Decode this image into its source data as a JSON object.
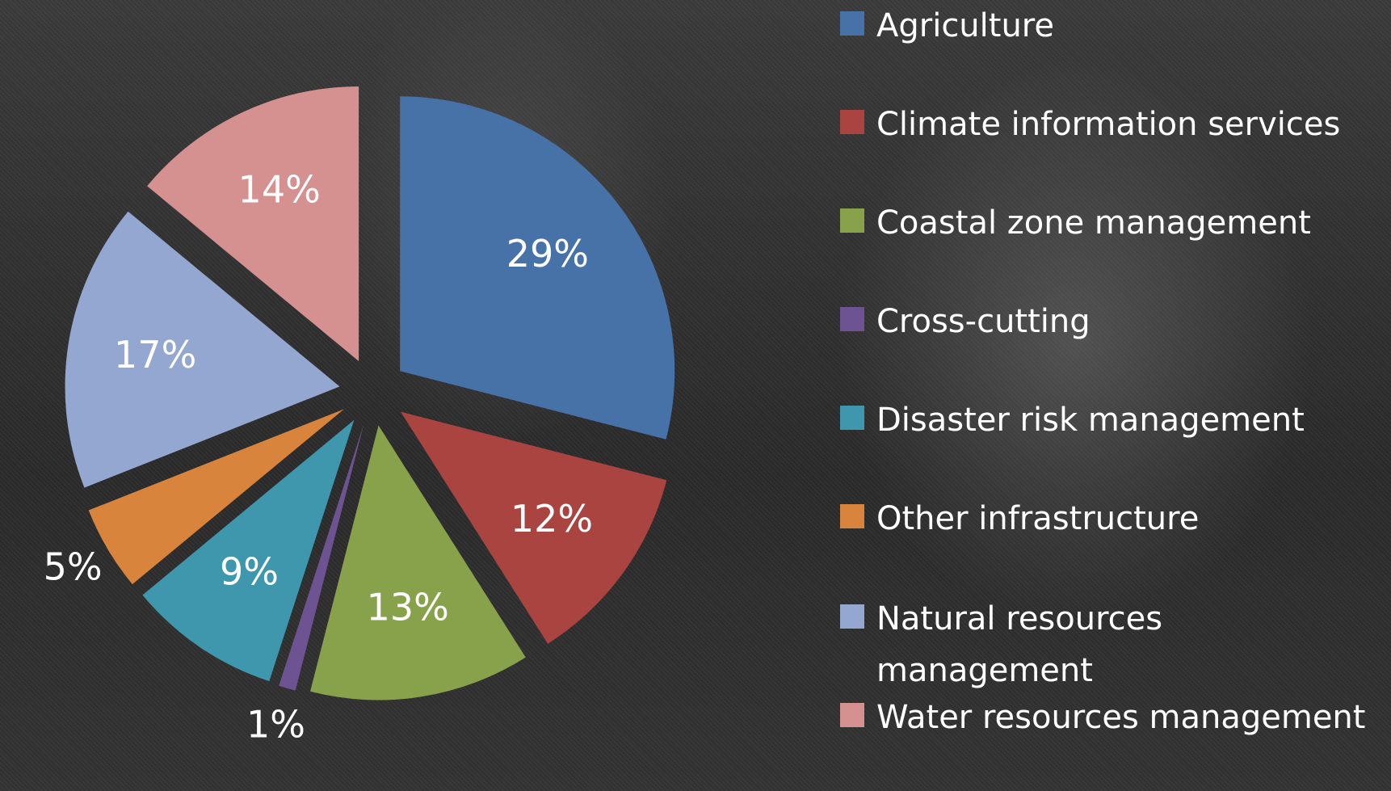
{
  "chart_data": {
    "type": "pie",
    "categories": [
      "Agriculture",
      "Climate information services",
      "Coastal zone management",
      "Cross-cutting",
      "Disaster risk management",
      "Other infrastructure",
      "Natural resources management",
      "Water resources management"
    ],
    "values": [
      29,
      12,
      13,
      1,
      9,
      5,
      17,
      14
    ],
    "value_labels": [
      "29%",
      "12%",
      "13%",
      "1%",
      "9%",
      "5%",
      "17%",
      "14%"
    ],
    "colors": [
      "#4672a8",
      "#a94441",
      "#88a24c",
      "#6e5393",
      "#3e97ad",
      "#d9843c",
      "#93a7d1",
      "#d49190"
    ],
    "legend": "right"
  }
}
